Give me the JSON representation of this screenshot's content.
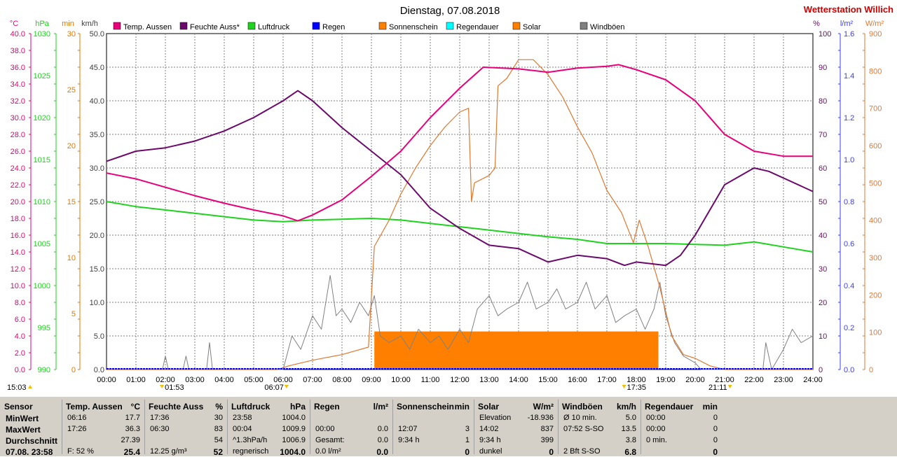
{
  "title": "Dienstag, 07.08.2018",
  "station": "Wetterstation Willich",
  "colors": {
    "temp": "#e8007a",
    "hum": "#6b0a6b",
    "press": "#1ed21e",
    "rain": "#0000ff",
    "sun": "#ff8000",
    "rainDur": "#00ffff",
    "solar": "#e07830",
    "gust": "#808080",
    "station": "#d00000",
    "minAxis": "#e07a00",
    "wm2": "#e07830",
    "lm2": "#3c3cff"
  },
  "legend": [
    {
      "label": "Temp. Aussen",
      "color": "#e8007a"
    },
    {
      "label": "Feuchte Auss*",
      "color": "#6b0a6b"
    },
    {
      "label": "Luftdruck",
      "color": "#1ed21e"
    },
    {
      "label": "Regen",
      "color": "#0000ff"
    },
    {
      "label": "Sonnenschein",
      "color": "#ff8000"
    },
    {
      "label": "Regendauer",
      "color": "#00ffff"
    },
    {
      "label": "Solar",
      "color": "#ff8000"
    },
    {
      "label": "Windböen",
      "color": "#808080"
    }
  ],
  "axes": {
    "left_units": [
      "°C",
      "hPa",
      "min",
      "km/h"
    ],
    "right_units": [
      "%",
      "l/m²",
      "W/m²"
    ],
    "temp_ticks": [
      "0.0",
      "2.0",
      "4.0",
      "6.0",
      "8.0",
      "10.0",
      "12.0",
      "14.0",
      "16.0",
      "18.0",
      "20.0",
      "22.0",
      "24.0",
      "26.0",
      "28.0",
      "30.0",
      "32.0",
      "34.0",
      "36.0",
      "38.0",
      "40.0"
    ],
    "press_ticks": [
      "990",
      "995",
      "1000",
      "1005",
      "1010",
      "1015",
      "1020",
      "1025",
      "1030"
    ],
    "min_ticks": [
      "0",
      "5",
      "10",
      "15",
      "20",
      "25",
      "30"
    ],
    "kmh_ticks": [
      "0.0",
      "5.0",
      "10.0",
      "15.0",
      "20.0",
      "25.0",
      "30.0",
      "35.0",
      "40.0",
      "45.0",
      "50.0"
    ],
    "pct_ticks": [
      "0",
      "10",
      "20",
      "30",
      "40",
      "50",
      "60",
      "70",
      "80",
      "90",
      "100"
    ],
    "lm2_ticks": [
      "0.0",
      "0.2",
      "0.4",
      "0.6",
      "0.8",
      "1.0",
      "1.2",
      "1.4",
      "1.6"
    ],
    "wm2_ticks": [
      "0",
      "100",
      "200",
      "300",
      "400",
      "500",
      "600",
      "700",
      "800",
      "900"
    ],
    "x_ticks": [
      "00:00",
      "01:00",
      "02:00",
      "03:00",
      "04:00",
      "05:00",
      "06:00",
      "07:00",
      "08:00",
      "09:00",
      "10:00",
      "11:00",
      "12:00",
      "13:00",
      "14:00",
      "15:00",
      "16:00",
      "17:00",
      "18:00",
      "19:00",
      "20:00",
      "21:00",
      "22:00",
      "23:00",
      "24:00"
    ]
  },
  "markers": {
    "sunrise_time": "06:07",
    "sunset_time": "21:11",
    "moonrise_time": "15:03",
    "moonset_time": "01:53",
    "solarnoon_time": "17:35"
  },
  "chart_data": {
    "type": "line",
    "x_unit": "hour",
    "series": [
      {
        "name": "Temp. Aussen",
        "axis": "°C",
        "ylim": [
          0,
          40
        ],
        "points": [
          [
            0,
            23.4
          ],
          [
            1,
            22.7
          ],
          [
            2,
            21.7
          ],
          [
            3,
            20.7
          ],
          [
            4,
            19.8
          ],
          [
            5,
            19.0
          ],
          [
            6,
            18.3
          ],
          [
            6.5,
            17.7
          ],
          [
            7,
            18.4
          ],
          [
            8,
            20.2
          ],
          [
            9,
            23.0
          ],
          [
            10,
            26.0
          ],
          [
            11,
            30.0
          ],
          [
            12,
            33.5
          ],
          [
            12.8,
            36.0
          ],
          [
            14,
            35.8
          ],
          [
            15,
            35.4
          ],
          [
            16,
            35.9
          ],
          [
            17,
            36.1
          ],
          [
            17.4,
            36.3
          ],
          [
            18,
            35.7
          ],
          [
            19,
            34.5
          ],
          [
            20,
            32.0
          ],
          [
            21,
            28.0
          ],
          [
            22,
            26.0
          ],
          [
            23,
            25.4
          ],
          [
            24,
            25.4
          ]
        ]
      },
      {
        "name": "Feuchte Auss*",
        "axis": "%",
        "ylim": [
          0,
          100
        ],
        "points": [
          [
            0,
            62
          ],
          [
            1,
            65
          ],
          [
            2,
            66
          ],
          [
            3,
            68
          ],
          [
            4,
            71
          ],
          [
            5,
            75
          ],
          [
            6,
            80
          ],
          [
            6.5,
            83
          ],
          [
            7,
            80
          ],
          [
            8,
            72
          ],
          [
            9,
            65
          ],
          [
            10,
            58
          ],
          [
            11,
            48
          ],
          [
            12,
            42
          ],
          [
            13,
            37
          ],
          [
            14,
            36
          ],
          [
            15,
            32
          ],
          [
            16,
            34
          ],
          [
            17,
            33
          ],
          [
            17.6,
            31
          ],
          [
            18,
            32
          ],
          [
            19,
            31
          ],
          [
            19.5,
            34
          ],
          [
            20,
            40
          ],
          [
            21,
            55
          ],
          [
            22,
            60
          ],
          [
            22.5,
            59
          ],
          [
            23,
            57
          ],
          [
            24,
            53
          ]
        ]
      },
      {
        "name": "Luftdruck",
        "axis": "hPa",
        "ylim": [
          990,
          1030
        ],
        "points": [
          [
            0,
            1010.0
          ],
          [
            1,
            1009.4
          ],
          [
            2,
            1009.0
          ],
          [
            3,
            1008.6
          ],
          [
            4,
            1008.2
          ],
          [
            5,
            1007.8
          ],
          [
            6,
            1007.6
          ],
          [
            7,
            1007.8
          ],
          [
            8,
            1007.9
          ],
          [
            9,
            1008.0
          ],
          [
            10,
            1007.8
          ],
          [
            11,
            1007.4
          ],
          [
            12,
            1007.0
          ],
          [
            13,
            1006.6
          ],
          [
            14,
            1006.2
          ],
          [
            15,
            1005.8
          ],
          [
            16,
            1005.5
          ],
          [
            17,
            1005.0
          ],
          [
            18,
            1005.0
          ],
          [
            19,
            1005.0
          ],
          [
            20,
            1004.9
          ],
          [
            21,
            1004.8
          ],
          [
            22,
            1005.2
          ],
          [
            23,
            1004.6
          ],
          [
            24,
            1004.0
          ]
        ]
      },
      {
        "name": "Solar",
        "axis": "W/m²",
        "ylim": [
          0,
          900
        ],
        "points": [
          [
            0,
            0
          ],
          [
            5.8,
            0
          ],
          [
            6.2,
            10
          ],
          [
            7,
            25
          ],
          [
            8,
            40
          ],
          [
            8.9,
            60
          ],
          [
            9.1,
            330
          ],
          [
            9.6,
            400
          ],
          [
            10,
            470
          ],
          [
            10.5,
            540
          ],
          [
            11,
            600
          ],
          [
            11.5,
            650
          ],
          [
            12,
            690
          ],
          [
            12.3,
            700
          ],
          [
            12.4,
            450
          ],
          [
            12.5,
            500
          ],
          [
            13.0,
            520
          ],
          [
            13.2,
            540
          ],
          [
            13.3,
            760
          ],
          [
            13.6,
            780
          ],
          [
            14,
            830
          ],
          [
            14.5,
            830
          ],
          [
            15,
            790
          ],
          [
            15.5,
            730
          ],
          [
            16,
            650
          ],
          [
            16.5,
            580
          ],
          [
            17,
            480
          ],
          [
            17.5,
            420
          ],
          [
            17.9,
            340
          ],
          [
            18.1,
            400
          ],
          [
            18.4,
            330
          ],
          [
            18.8,
            220
          ],
          [
            19.2,
            90
          ],
          [
            19.6,
            40
          ],
          [
            20,
            30
          ],
          [
            20.5,
            10
          ],
          [
            21,
            0
          ],
          [
            24,
            0
          ]
        ]
      },
      {
        "name": "Windböen",
        "axis": "km/h",
        "ylim": [
          0,
          50
        ],
        "points": [
          [
            0,
            0
          ],
          [
            1.9,
            0
          ],
          [
            2.0,
            2
          ],
          [
            2.1,
            0
          ],
          [
            2.6,
            0
          ],
          [
            2.7,
            2
          ],
          [
            2.8,
            0
          ],
          [
            3.4,
            0
          ],
          [
            3.5,
            4
          ],
          [
            3.6,
            0
          ],
          [
            6.0,
            0
          ],
          [
            6.3,
            5
          ],
          [
            6.6,
            3
          ],
          [
            7,
            8
          ],
          [
            7.3,
            6
          ],
          [
            7.6,
            14
          ],
          [
            7.8,
            8
          ],
          [
            8,
            9
          ],
          [
            8.3,
            7
          ],
          [
            8.6,
            10
          ],
          [
            8.9,
            8
          ],
          [
            9.1,
            11
          ],
          [
            9.3,
            5
          ],
          [
            9.6,
            4
          ],
          [
            10,
            5
          ],
          [
            10.3,
            3
          ],
          [
            10.6,
            6
          ],
          [
            11,
            4
          ],
          [
            11.3,
            5
          ],
          [
            11.6,
            3
          ],
          [
            12,
            6
          ],
          [
            12.3,
            4
          ],
          [
            12.6,
            9
          ],
          [
            13,
            11
          ],
          [
            13.3,
            8
          ],
          [
            13.6,
            9
          ],
          [
            14,
            10
          ],
          [
            14.3,
            13
          ],
          [
            14.6,
            9
          ],
          [
            15,
            10
          ],
          [
            15.3,
            12
          ],
          [
            15.6,
            9
          ],
          [
            16,
            10
          ],
          [
            16.3,
            13
          ],
          [
            16.6,
            9
          ],
          [
            17,
            11
          ],
          [
            17.3,
            7
          ],
          [
            17.6,
            8
          ],
          [
            18,
            9
          ],
          [
            18.3,
            6
          ],
          [
            18.6,
            9
          ],
          [
            18.8,
            13
          ],
          [
            19,
            8
          ],
          [
            19.3,
            4
          ],
          [
            19.6,
            2
          ],
          [
            20,
            1
          ],
          [
            20.2,
            0
          ],
          [
            22.3,
            0
          ],
          [
            22.4,
            4
          ],
          [
            22.6,
            0
          ],
          [
            23,
            3
          ],
          [
            23.3,
            6
          ],
          [
            23.6,
            4
          ],
          [
            24,
            5
          ]
        ]
      }
    ],
    "sunshine_bar": {
      "start": 9.1,
      "end": 18.75,
      "value_min": 3.4
    }
  },
  "stats": {
    "columns": [
      {
        "header": "Sensor",
        "unit": "",
        "rows": [
          "MinWert",
          "MaxWert",
          "Durchschnitt",
          "07.08. 23:58"
        ]
      },
      {
        "header": "Temp. Aussen",
        "unit": "°C",
        "rows": [
          [
            "06:16",
            "17.7"
          ],
          [
            "17:26",
            "36.3"
          ],
          [
            "",
            "27.39"
          ],
          [
            "F: 52 %",
            "25.4"
          ]
        ]
      },
      {
        "header": "Feuchte Auss",
        "unit": "%",
        "rows": [
          [
            "17:36",
            "30"
          ],
          [
            "06:30",
            "83"
          ],
          [
            "",
            "54"
          ],
          [
            "12.25 g/m³",
            "52"
          ]
        ]
      },
      {
        "header": "Luftdruck",
        "unit": "hPa",
        "rows": [
          [
            "23:58",
            "1004.0"
          ],
          [
            "00:04",
            "1009.9"
          ],
          [
            "^1.3hPa/h",
            "1006.9"
          ],
          [
            "regnerisch",
            "1004.0"
          ]
        ]
      },
      {
        "header": "Regen",
        "unit": "l/m²",
        "rows": [
          [
            "",
            ""
          ],
          [
            "00:00",
            "0.0"
          ],
          [
            "Gesamt:",
            "0.0"
          ],
          [
            "0.0 l/m²",
            "0.0"
          ]
        ]
      },
      {
        "header": "Sonnenschein",
        "unit": "min",
        "rows": [
          [
            "",
            ""
          ],
          [
            "12:07",
            "3"
          ],
          [
            "9:34 h",
            "1"
          ],
          [
            "",
            "0"
          ]
        ]
      },
      {
        "header": "Solar",
        "unit": "W/m²",
        "rows": [
          [
            "Elevation",
            "-18.936"
          ],
          [
            "14:02",
            "837"
          ],
          [
            "9:34 h",
            "399"
          ],
          [
            "dunkel",
            "0"
          ]
        ]
      },
      {
        "header": "Windböen",
        "unit": "km/h",
        "rows": [
          [
            "Ø 10 min.",
            "5.0"
          ],
          [
            "07:52     S-SO",
            "13.5"
          ],
          [
            "",
            "3.8"
          ],
          [
            "2 Bft S-SO",
            "6.8"
          ]
        ]
      },
      {
        "header": "Regendauer",
        "unit": "min",
        "rows": [
          [
            "00:00",
            "0"
          ],
          [
            "00:00",
            "0"
          ],
          [
            "0 min.",
            "0"
          ],
          [
            "",
            "0"
          ]
        ]
      }
    ]
  }
}
